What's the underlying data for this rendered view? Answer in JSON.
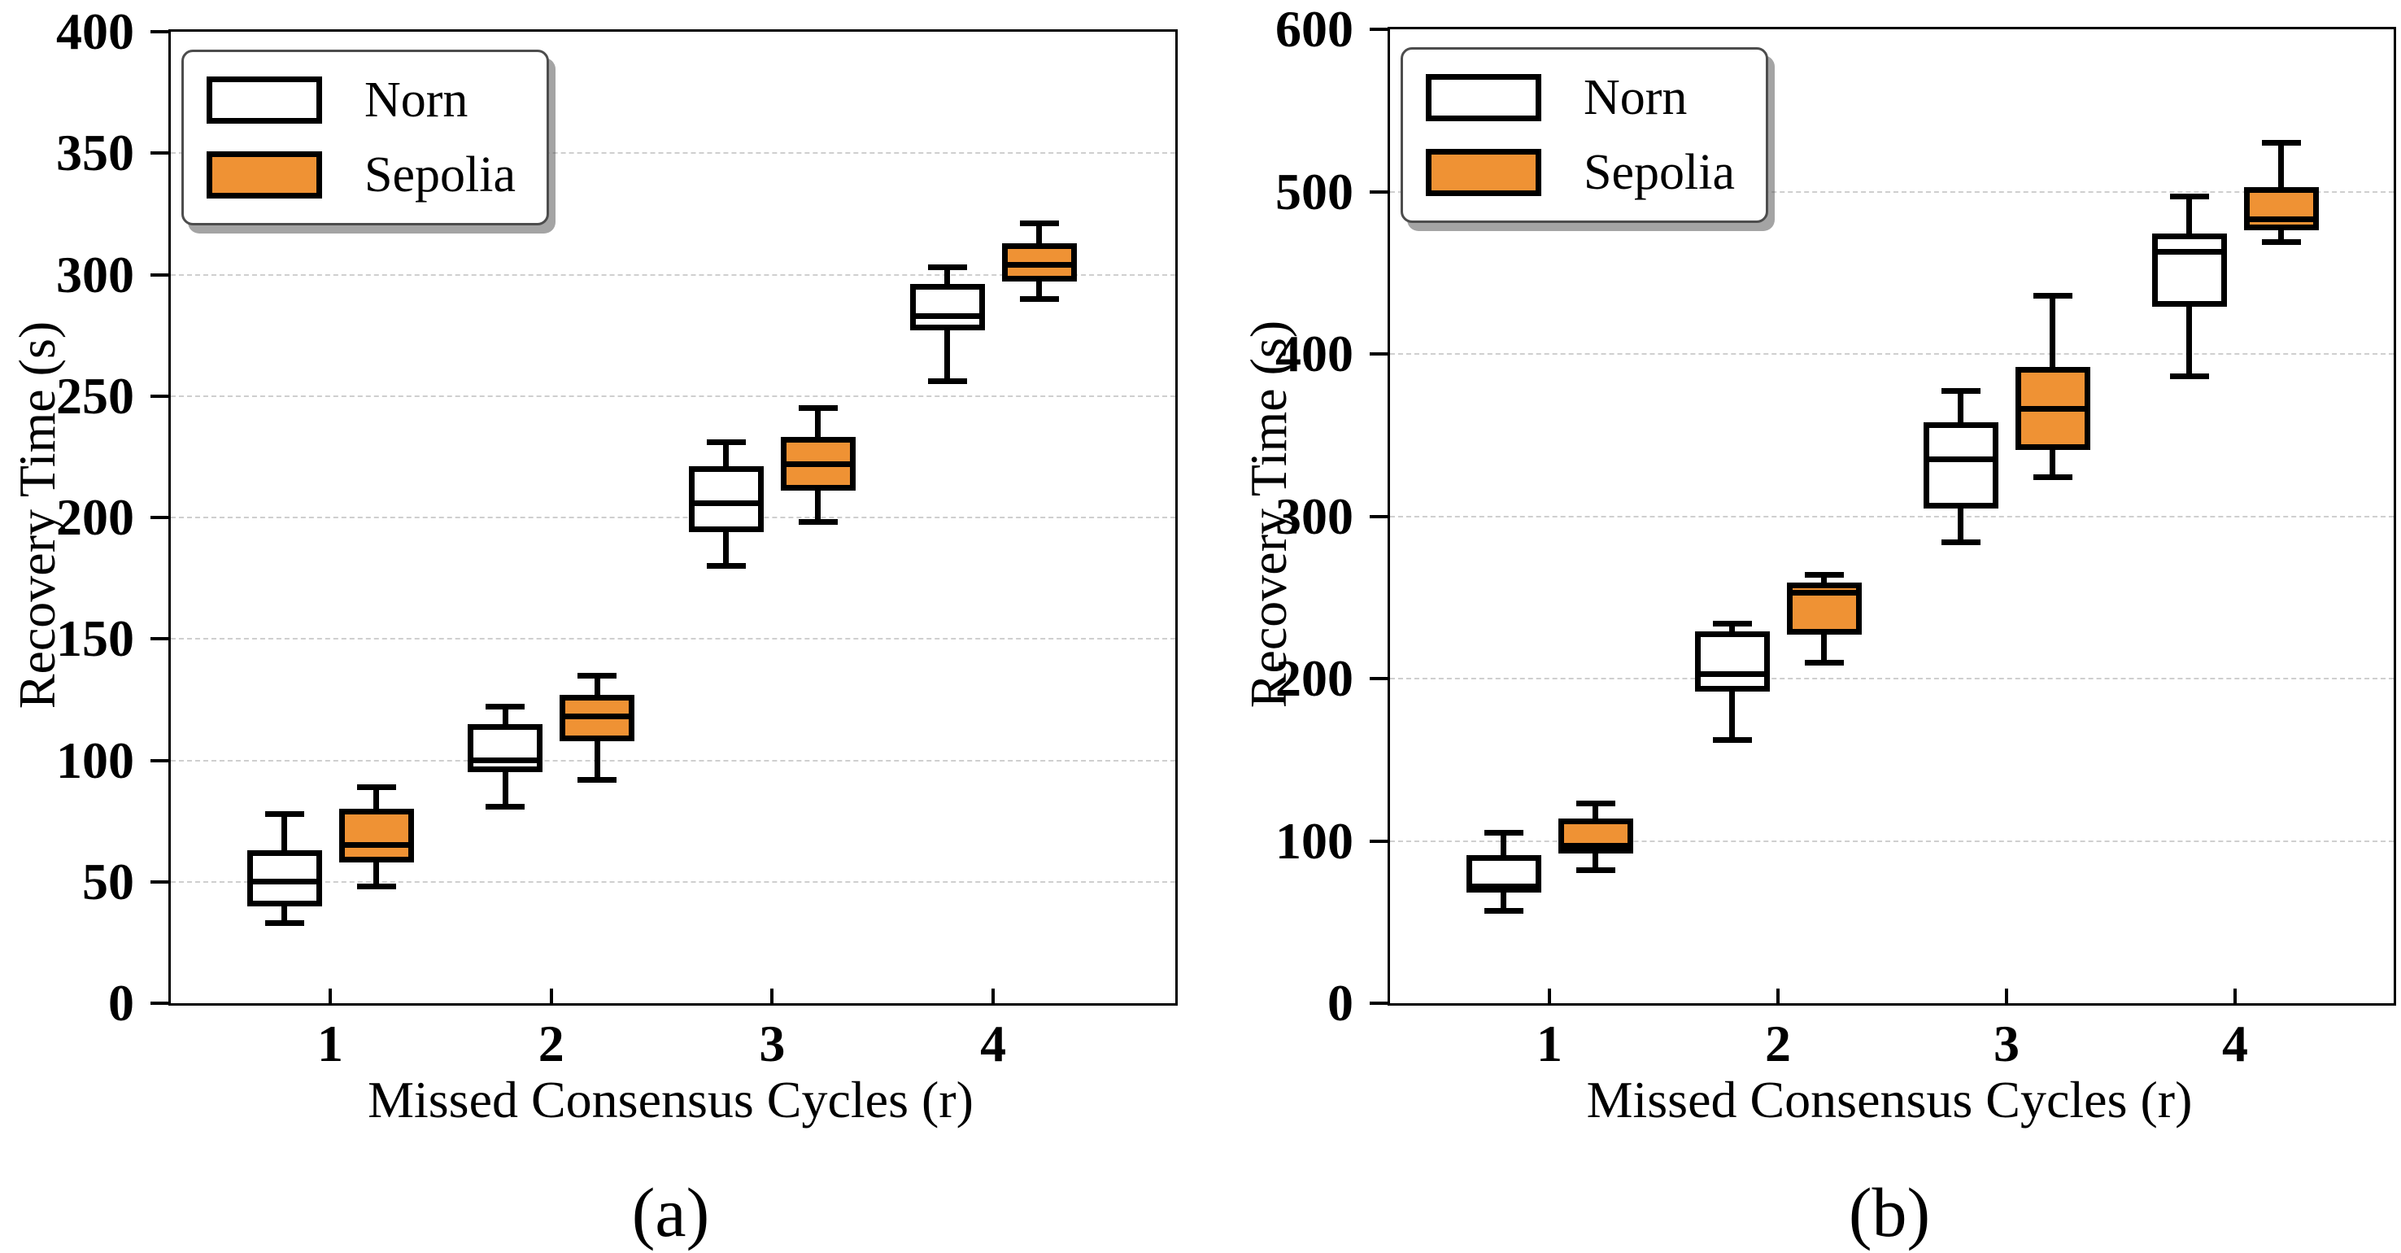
{
  "colors": {
    "norn_fill": "#FFFFFF",
    "sepolia_fill": "#EF9234",
    "box_edge": "#000000",
    "grid": "#CFCFCF",
    "legend_border": "#4D4D4D"
  },
  "chart_data": [
    {
      "type": "box",
      "panel": "a",
      "title": "(a)",
      "xlabel": "Missed Consensus Cycles (r)",
      "ylabel": "Recovery Time (s)",
      "categories": [
        "1",
        "2",
        "3",
        "4"
      ],
      "ylim": [
        0,
        400
      ],
      "yticks": [
        0,
        50,
        100,
        150,
        200,
        250,
        300,
        350,
        400
      ],
      "grid": "horizontal-dashed",
      "legend_position": "upper-left",
      "series": [
        {
          "name": "Norn",
          "fill": "#FFFFFF",
          "boxes": [
            {
              "whislo": 33,
              "q1": 40,
              "med": 50,
              "q3": 63,
              "whishi": 78
            },
            {
              "whislo": 81,
              "q1": 95,
              "med": 100,
              "q3": 115,
              "whishi": 122
            },
            {
              "whislo": 180,
              "q1": 194,
              "med": 206,
              "q3": 221,
              "whishi": 231
            },
            {
              "whislo": 256,
              "q1": 277,
              "med": 283,
              "q3": 296,
              "whishi": 303
            }
          ]
        },
        {
          "name": "Sepolia",
          "fill": "#EF9234",
          "boxes": [
            {
              "whislo": 48,
              "q1": 58,
              "med": 65,
              "q3": 80,
              "whishi": 89
            },
            {
              "whislo": 92,
              "q1": 108,
              "med": 118,
              "q3": 127,
              "whishi": 135
            },
            {
              "whislo": 198,
              "q1": 211,
              "med": 222,
              "q3": 233,
              "whishi": 245
            },
            {
              "whislo": 290,
              "q1": 297,
              "med": 304,
              "q3": 313,
              "whishi": 321
            }
          ]
        }
      ]
    },
    {
      "type": "box",
      "panel": "b",
      "title": "(b)",
      "xlabel": "Missed Consensus Cycles (r)",
      "ylabel": "Recovery Time (s)",
      "categories": [
        "1",
        "2",
        "3",
        "4"
      ],
      "ylim": [
        0,
        600
      ],
      "yticks": [
        0,
        100,
        200,
        300,
        400,
        500,
        600
      ],
      "grid": "horizontal-dashed",
      "legend_position": "upper-left",
      "series": [
        {
          "name": "Norn",
          "fill": "#FFFFFF",
          "boxes": [
            {
              "whislo": 57,
              "q1": 68,
              "med": 72,
              "q3": 91,
              "whishi": 105
            },
            {
              "whislo": 162,
              "q1": 192,
              "med": 203,
              "q3": 229,
              "whishi": 234
            },
            {
              "whislo": 284,
              "q1": 305,
              "med": 335,
              "q3": 358,
              "whishi": 377
            },
            {
              "whislo": 386,
              "q1": 429,
              "med": 463,
              "q3": 474,
              "whishi": 497
            }
          ]
        },
        {
          "name": "Sepolia",
          "fill": "#EF9234",
          "boxes": [
            {
              "whislo": 82,
              "q1": 92,
              "med": 97,
              "q3": 114,
              "whishi": 123
            },
            {
              "whislo": 210,
              "q1": 227,
              "med": 253,
              "q3": 259,
              "whishi": 264
            },
            {
              "whislo": 324,
              "q1": 341,
              "med": 366,
              "q3": 392,
              "whishi": 436
            },
            {
              "whislo": 469,
              "q1": 476,
              "med": 483,
              "q3": 503,
              "whishi": 530
            }
          ]
        }
      ]
    }
  ]
}
